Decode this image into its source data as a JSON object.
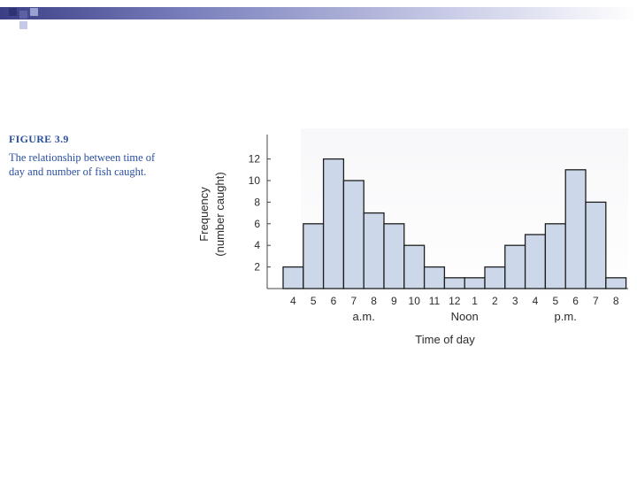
{
  "slide": {
    "accent_color": "#3b3f86",
    "figure_label": "FIGURE 3.9",
    "figure_caption": "The relationship between time of day and number of fish caught."
  },
  "chart_data": {
    "type": "bar",
    "title": "",
    "xlabel": "Time of day",
    "ylabel": "Frequency\n(number caught)",
    "ylabel_lines": [
      "Frequency",
      "(number caught)"
    ],
    "categories": [
      "4",
      "5",
      "6",
      "7",
      "8",
      "9",
      "10",
      "11",
      "12",
      "1",
      "2",
      "3",
      "4",
      "5",
      "6",
      "7",
      "8"
    ],
    "values": [
      2,
      6,
      12,
      10,
      7,
      6,
      4,
      2,
      1,
      1,
      2,
      4,
      5,
      6,
      11,
      8,
      1
    ],
    "y_ticks": [
      2,
      4,
      6,
      8,
      10,
      12
    ],
    "ylim": [
      0,
      14
    ],
    "period_labels": [
      {
        "label": "a.m.",
        "category_index": 3.5
      },
      {
        "label": "Noon",
        "category_index": 8.5
      },
      {
        "label": "p.m.",
        "category_index": 13.5
      }
    ],
    "bar_color": "#cdd7ea",
    "edge_color": "#1e1e1e",
    "grid": false
  }
}
